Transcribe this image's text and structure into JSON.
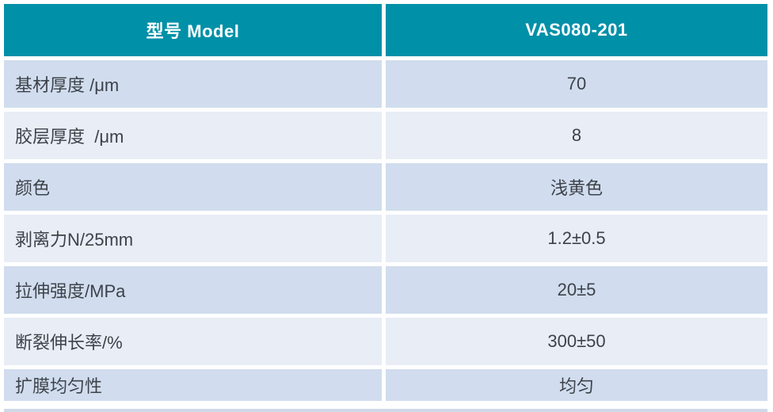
{
  "table": {
    "header": {
      "model_label": "型号 Model",
      "model_value": "VAS080-201"
    },
    "rows": [
      {
        "label": "基材厚度 /μm",
        "value": "70"
      },
      {
        "label": "胶层厚度  /μm",
        "value": "8"
      },
      {
        "label": "颜色",
        "value": "浅黄色"
      },
      {
        "label": "剥离力N/25mm",
        "value": "1.2±0.5"
      },
      {
        "label": "拉伸强度/MPa",
        "value": "20±5"
      },
      {
        "label": "断裂伸长率/%",
        "value": "300±50"
      },
      {
        "label": "扩膜均匀性",
        "value": "均匀"
      }
    ]
  },
  "colors": {
    "header_background": "#0090a8",
    "header_text": "#ffffff",
    "row_odd_background": "#d1ddee",
    "row_even_background": "#e9edf6",
    "body_text": "#3d424a",
    "gap": "#ffffff",
    "bottom_strip": "#cfd9e8"
  }
}
